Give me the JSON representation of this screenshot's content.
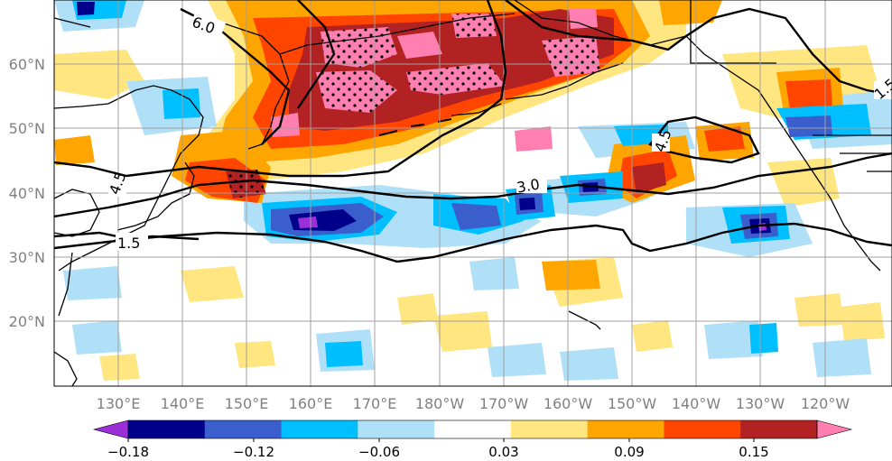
{
  "map": {
    "lon_labels": [
      "130°E",
      "140°E",
      "150°E",
      "160°E",
      "170°E",
      "180°W",
      "170°W",
      "160°W",
      "150°W",
      "140°W",
      "130°W",
      "120°W"
    ],
    "lat_labels": [
      "60°N",
      "50°N",
      "40°N",
      "30°N",
      "20°N"
    ],
    "contour_labels": [
      "6.0",
      "4.5",
      "4.5",
      "3.0",
      "1.5",
      "1.5"
    ]
  },
  "colorbar": {
    "colors": [
      "#9b30d9",
      "#00008b",
      "#3a5fcd",
      "#00bfff",
      "#b0e0f8",
      "#ffffff",
      "#ffe680",
      "#ffa500",
      "#ff4500",
      "#b22222",
      "#ff80b0"
    ],
    "tick_labels": [
      "−0.18",
      "−0.12",
      "−0.06",
      "0.03",
      "0.09",
      "0.15"
    ]
  }
}
